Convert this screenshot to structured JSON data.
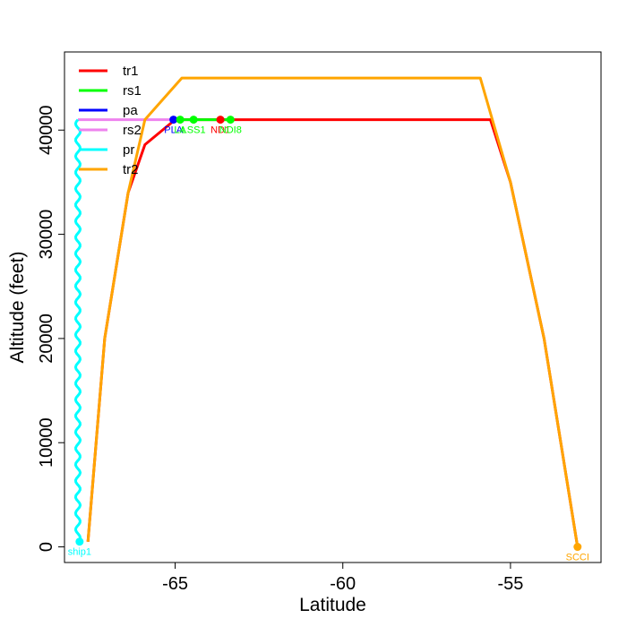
{
  "chart_data": {
    "type": "line",
    "title": "",
    "xlabel": "Latitude",
    "ylabel": "Altitude (feet)",
    "xlim": [
      -68.3,
      -52.3
    ],
    "ylim": [
      -1500,
      47500
    ],
    "x_ticks": [
      -65,
      -60,
      -55
    ],
    "x_tick_labels": [
      "-65",
      "-60",
      "-55"
    ],
    "y_ticks": [
      0,
      10000,
      20000,
      30000,
      40000
    ],
    "y_tick_labels": [
      "0",
      "10000",
      "20000",
      "30000",
      "40000"
    ],
    "grid": false,
    "legend_position": "top-left",
    "series": [
      {
        "name": "tr1",
        "color": "#ff0000",
        "points": [
          [
            -67.6,
            500
          ],
          [
            -67.1,
            20000
          ],
          [
            -66.4,
            34000
          ],
          [
            -65.9,
            38600
          ],
          [
            -65.0,
            41000
          ],
          [
            -55.6,
            41000
          ],
          [
            -55.0,
            35000
          ],
          [
            -54.0,
            20000
          ],
          [
            -53.0,
            0
          ]
        ]
      },
      {
        "name": "rs1",
        "color": "#00ff00",
        "points": [
          [
            -64.8,
            41000
          ],
          [
            -63.3,
            41000
          ]
        ]
      },
      {
        "name": "pa",
        "color": "#0000ff",
        "points": [
          [
            -65.1,
            41000
          ],
          [
            -64.8,
            41000
          ]
        ]
      },
      {
        "name": "rs2",
        "color": "#ee82ee",
        "points": [
          [
            -67.9,
            41000
          ],
          [
            -64.8,
            41000
          ]
        ]
      },
      {
        "name": "pr",
        "color": "#00ffff",
        "points": [],
        "wavy": true,
        "x_center": -67.9,
        "y_start": 500,
        "y_end": 41000
      },
      {
        "name": "tr2",
        "color": "#ffa500",
        "points": [
          [
            -67.6,
            500
          ],
          [
            -67.1,
            20000
          ],
          [
            -66.4,
            34000
          ],
          [
            -65.9,
            41000
          ],
          [
            -64.8,
            45000
          ],
          [
            -55.9,
            45000
          ],
          [
            -55.0,
            35000
          ],
          [
            -54.0,
            20000
          ],
          [
            -53.0,
            0
          ]
        ]
      }
    ],
    "markers": [
      {
        "label": "ship1",
        "x": -67.85,
        "y": 500,
        "color": "#00ffff"
      },
      {
        "label": "PLA",
        "x": -65.05,
        "y": 41000,
        "color": "#0000ff"
      },
      {
        "label": "LA",
        "x": -64.85,
        "y": 41000,
        "color": "#00ff00"
      },
      {
        "label": "LSS1",
        "x": -64.45,
        "y": 41000,
        "color": "#00ff00"
      },
      {
        "label": "ND1",
        "x": -63.65,
        "y": 41000,
        "color": "#ff0000"
      },
      {
        "label": "NDI8",
        "x": -63.35,
        "y": 41000,
        "color": "#00ff00"
      },
      {
        "label": "SCCI",
        "x": -53.0,
        "y": 0,
        "color": "#ffa500"
      }
    ]
  }
}
